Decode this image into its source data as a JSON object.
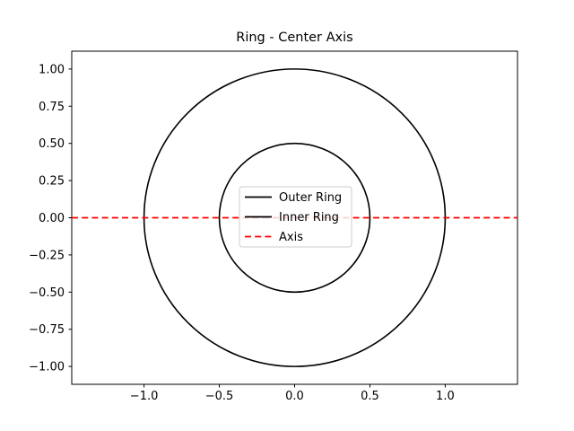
{
  "figure": {
    "title": "Ring - Center Axis",
    "background": "#ffffff"
  },
  "chart_data": {
    "type": "line",
    "title": "Ring - Center Axis",
    "xlabel": "",
    "ylabel": "",
    "xlim": [
      -1.48,
      1.48
    ],
    "ylim": [
      -1.12,
      1.12
    ],
    "grid": false,
    "x_ticks": [
      -1.0,
      -0.5,
      0.0,
      0.5,
      1.0
    ],
    "x_tick_labels": [
      "−1.0",
      "−0.5",
      "0.0",
      "0.5",
      "1.0"
    ],
    "y_ticks": [
      1.0,
      0.75,
      0.5,
      0.25,
      0.0,
      -0.25,
      -0.5,
      -0.75,
      -1.0
    ],
    "y_tick_labels": [
      "1.00",
      "0.75",
      "0.50",
      "0.25",
      "0.00",
      "−0.25",
      "−0.50",
      "−0.75",
      "−1.00"
    ],
    "series": [
      {
        "name": "Outer Ring",
        "shape": "circle",
        "center": [
          0,
          0
        ],
        "radius": 1.0,
        "color": "#000000",
        "style": "solid",
        "linewidth": 1.6
      },
      {
        "name": "Inner Ring",
        "shape": "circle",
        "center": [
          0,
          0
        ],
        "radius": 0.5,
        "color": "#000000",
        "style": "solid",
        "linewidth": 1.6
      },
      {
        "name": "Axis",
        "shape": "hline",
        "y": 0.0,
        "color": "#ff0000",
        "style": "dashed",
        "linewidth": 1.7
      }
    ],
    "legend": {
      "position": "center",
      "entries": [
        {
          "label": "Outer Ring",
          "color": "#000000",
          "style": "solid"
        },
        {
          "label": "Inner Ring",
          "color": "#000000",
          "style": "solid"
        },
        {
          "label": "Axis",
          "color": "#ff0000",
          "style": "dashed"
        }
      ]
    },
    "colors": {
      "axes_border": "#000000",
      "tick_label": "#000000",
      "legend_background": "rgba(255,255,255,0.8)",
      "legend_border": "#cccccc",
      "plot_background": "#ffffff"
    }
  }
}
